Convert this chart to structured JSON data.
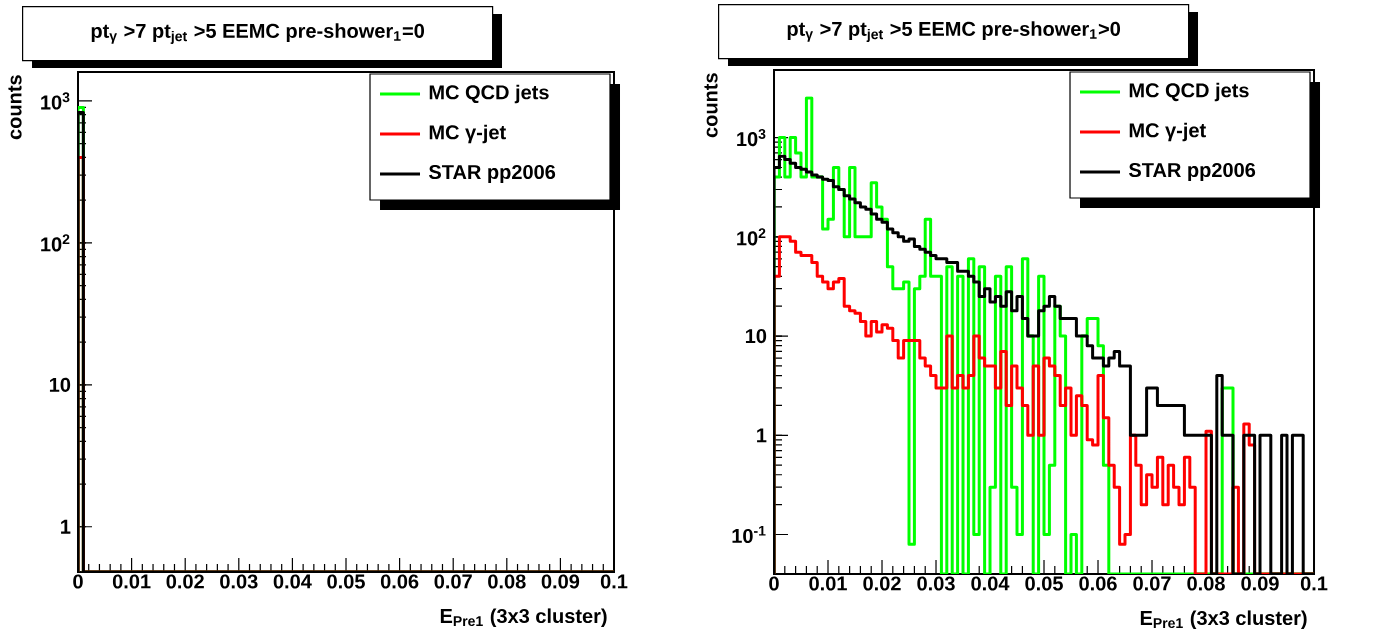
{
  "chart_data": [
    {
      "type": "histogram",
      "title": "pt$_{γ}$ >7  pt$_{jet}$ >5  EEMC pre-shower$_{1}$=0",
      "xlabel": "E$_{Pre1}$  (3x3 cluster)",
      "ylabel": "counts",
      "log": "y",
      "legend": "top right",
      "xlim": [
        0,
        0.1
      ],
      "ylim": [
        0.48,
        1600
      ],
      "xticks": [
        0,
        0.01,
        0.02,
        0.03,
        0.04,
        0.05,
        0.06,
        0.07,
        0.08,
        0.09,
        0.1
      ],
      "yticks": [
        1,
        10,
        {
          "value": 100,
          "label": "10$^{2}$"
        },
        {
          "value": 1000,
          "label": "10$^{3}$"
        }
      ],
      "bins": [
        0,
        0.001,
        0.002,
        0.003,
        0.004,
        0.005,
        0.006,
        0.007,
        0.008,
        0.009,
        0.01,
        0.011,
        0.012,
        0.013,
        0.014,
        0.015,
        0.016,
        0.017,
        0.018,
        0.019,
        0.02,
        0.021,
        0.022,
        0.023,
        0.024,
        0.025,
        0.026,
        0.027,
        0.028,
        0.029,
        0.03,
        0.031,
        0.032,
        0.033,
        0.034,
        0.035,
        0.036,
        0.037,
        0.038,
        0.039,
        0.04,
        0.041,
        0.042,
        0.043,
        0.044,
        0.045,
        0.046,
        0.047,
        0.048,
        0.049,
        0.05,
        0.051,
        0.052,
        0.053,
        0.054,
        0.055,
        0.056,
        0.057,
        0.058,
        0.059,
        0.06,
        0.061,
        0.062,
        0.063,
        0.064,
        0.065,
        0.066,
        0.067,
        0.068,
        0.069,
        0.07,
        0.071,
        0.072,
        0.073,
        0.074,
        0.075,
        0.076,
        0.077,
        0.078,
        0.079,
        0.08,
        0.081,
        0.082,
        0.083,
        0.084,
        0.085,
        0.086,
        0.087,
        0.088,
        0.089,
        0.09,
        0.091,
        0.092,
        0.093,
        0.094,
        0.095,
        0.096,
        0.097,
        0.098,
        0.099,
        0.1
      ],
      "series": [
        {
          "name": "MC QCD jets",
          "color": "#00ff00",
          "values": [
            900,
            null,
            null,
            null,
            null,
            null,
            null,
            null,
            null,
            null,
            null,
            null,
            null,
            null,
            null,
            null,
            null,
            null,
            null,
            null,
            null,
            null,
            null,
            null,
            null,
            null,
            null,
            null,
            null,
            null,
            null,
            null,
            null,
            null,
            null,
            null,
            null,
            null,
            null,
            null,
            null,
            null,
            null,
            null,
            null,
            null,
            null,
            null,
            null,
            null,
            null,
            null,
            null,
            null,
            null,
            null,
            null,
            null,
            null,
            null,
            null,
            null,
            null,
            null,
            null,
            null,
            null,
            null,
            null,
            null,
            null,
            null,
            null,
            null,
            null,
            null,
            null,
            null,
            null,
            null,
            null,
            null,
            null,
            null,
            null,
            null,
            null,
            null,
            null,
            null,
            null,
            null,
            null,
            null,
            null,
            null,
            null,
            null,
            null,
            null
          ]
        },
        {
          "name": "MC γ-jet",
          "color": "#ff0000",
          "values": [
            400,
            null,
            null,
            null,
            null,
            null,
            null,
            null,
            null,
            null,
            null,
            null,
            null,
            null,
            null,
            null,
            null,
            null,
            null,
            null,
            null,
            null,
            null,
            null,
            null,
            null,
            null,
            null,
            null,
            null,
            null,
            null,
            null,
            null,
            null,
            null,
            null,
            null,
            null,
            null,
            null,
            null,
            null,
            null,
            null,
            null,
            null,
            null,
            null,
            null,
            null,
            null,
            null,
            null,
            null,
            null,
            null,
            null,
            null,
            null,
            null,
            null,
            null,
            null,
            null,
            null,
            null,
            null,
            null,
            null,
            null,
            null,
            null,
            null,
            null,
            null,
            null,
            null,
            null,
            null,
            null,
            null,
            null,
            null,
            null,
            null,
            null,
            null,
            null,
            null,
            null,
            null,
            null,
            null,
            null,
            null,
            null,
            null,
            null,
            null
          ]
        },
        {
          "name": "STAR pp2006",
          "color": "#000000",
          "values": [
            830,
            null,
            null,
            null,
            null,
            null,
            null,
            null,
            null,
            null,
            null,
            null,
            null,
            null,
            null,
            null,
            null,
            null,
            null,
            null,
            null,
            null,
            null,
            null,
            null,
            null,
            null,
            null,
            null,
            null,
            null,
            null,
            null,
            null,
            null,
            null,
            null,
            null,
            null,
            null,
            null,
            null,
            null,
            null,
            null,
            null,
            null,
            null,
            null,
            null,
            null,
            null,
            null,
            null,
            null,
            null,
            null,
            null,
            null,
            null,
            null,
            null,
            null,
            null,
            null,
            null,
            null,
            null,
            null,
            null,
            null,
            null,
            null,
            null,
            null,
            null,
            null,
            null,
            null,
            null,
            null,
            null,
            null,
            null,
            null,
            null,
            null,
            null,
            null,
            null,
            null,
            null,
            null,
            null,
            null,
            null,
            null,
            null,
            null,
            null
          ]
        }
      ]
    },
    {
      "type": "histogram",
      "title": "pt$_{γ}$ >7  pt$_{jet}$ >5  EEMC pre-shower$_{1}$>0",
      "xlabel": "E$_{Pre1}$  (3x3 cluster)",
      "ylabel": "counts",
      "log": "y",
      "legend": "top right",
      "xlim": [
        0,
        0.1
      ],
      "ylim": [
        0.04,
        4800
      ],
      "xticks": [
        0,
        0.01,
        0.02,
        0.03,
        0.04,
        0.05,
        0.06,
        0.07,
        0.08,
        0.09,
        0.1
      ],
      "yticks": [
        {
          "value": 0.1,
          "label": "10$^{-1}$"
        },
        1,
        10,
        {
          "value": 100,
          "label": "10$^{2}$"
        },
        {
          "value": 1000,
          "label": "10$^{3}$"
        }
      ],
      "bins": [
        0,
        0.001,
        0.002,
        0.003,
        0.004,
        0.005,
        0.006,
        0.007,
        0.008,
        0.009,
        0.01,
        0.011,
        0.012,
        0.013,
        0.014,
        0.015,
        0.016,
        0.017,
        0.018,
        0.019,
        0.02,
        0.021,
        0.022,
        0.023,
        0.024,
        0.025,
        0.026,
        0.027,
        0.028,
        0.029,
        0.03,
        0.031,
        0.032,
        0.033,
        0.034,
        0.035,
        0.036,
        0.037,
        0.038,
        0.039,
        0.04,
        0.041,
        0.042,
        0.043,
        0.044,
        0.045,
        0.046,
        0.047,
        0.048,
        0.049,
        0.05,
        0.051,
        0.052,
        0.053,
        0.054,
        0.055,
        0.056,
        0.057,
        0.058,
        0.059,
        0.06,
        0.061,
        0.062,
        0.063,
        0.064,
        0.065,
        0.066,
        0.067,
        0.068,
        0.069,
        0.07,
        0.071,
        0.072,
        0.073,
        0.074,
        0.075,
        0.076,
        0.077,
        0.078,
        0.079,
        0.08,
        0.081,
        0.082,
        0.083,
        0.084,
        0.085,
        0.086,
        0.087,
        0.088,
        0.089,
        0.09,
        0.091,
        0.092,
        0.093,
        0.094,
        0.095,
        0.096,
        0.097,
        0.098,
        0.099,
        0.1
      ],
      "series": [
        {
          "name": "MC QCD jets",
          "color": "#00ff00",
          "values": [
            400,
            1000,
            400,
            1000,
            700,
            400,
            2500,
            400,
            400,
            120,
            150,
            500,
            300,
            100,
            500,
            100,
            100,
            100,
            350,
            200,
            150,
            50,
            30,
            30,
            35,
            0.08,
            30,
            40,
            150,
            40,
            40,
            null,
            50,
            null,
            40,
            null,
            60,
            0.1,
            50,
            null,
            0.3,
            40,
            null,
            50,
            0.3,
            0.1,
            60,
            10,
            null,
            40,
            0.1,
            0.5,
            20,
            10,
            null,
            0.1,
            null,
            10,
            15,
            15,
            8,
            0.5,
            null,
            null,
            null,
            null,
            null,
            null,
            null,
            null,
            null,
            null,
            null,
            null,
            null,
            null,
            null,
            null,
            null,
            null,
            null,
            null,
            null,
            3,
            3,
            null,
            null,
            null,
            null,
            null,
            null,
            null,
            null,
            null,
            null,
            null,
            null,
            null,
            null,
            null
          ]
        },
        {
          "name": "MC γ-jet",
          "color": "#ff0000",
          "values": [
            40,
            100,
            100,
            90,
            70,
            65,
            65,
            55,
            40,
            35,
            30,
            35,
            38,
            20,
            18,
            17,
            14,
            10,
            14,
            11,
            13,
            12,
            9,
            6,
            9,
            9,
            9,
            6,
            5,
            4,
            3,
            3,
            10,
            3,
            4,
            3,
            4,
            10,
            6,
            5,
            5,
            3,
            7,
            2,
            5,
            3,
            2,
            1,
            5,
            1,
            6,
            5,
            4,
            2,
            3,
            1,
            2.5,
            2,
            0.9,
            0.8,
            4,
            1.5,
            0.5,
            0.3,
            0.08,
            0.1,
            1,
            0.5,
            0.2,
            0.4,
            0.3,
            0.6,
            0.2,
            0.5,
            0.3,
            0.2,
            0.6,
            0.3,
            null,
            null,
            1.1,
            null,
            null,
            null,
            null,
            0.3,
            null,
            1.3,
            0.8,
            null,
            null,
            null,
            null,
            null,
            null,
            null,
            null,
            null,
            null,
            null
          ]
        },
        {
          "name": "STAR pp2006",
          "color": "#000000",
          "values": [
            500,
            650,
            600,
            550,
            500,
            480,
            450,
            420,
            400,
            380,
            370,
            320,
            300,
            260,
            240,
            220,
            200,
            190,
            170,
            150,
            140,
            120,
            110,
            100,
            90,
            95,
            80,
            75,
            70,
            65,
            60,
            60,
            55,
            55,
            45,
            45,
            40,
            35,
            25,
            30,
            22,
            25,
            20,
            28,
            18,
            25,
            15,
            10,
            10,
            18,
            20,
            25,
            20,
            15,
            15,
            15,
            10,
            10,
            8,
            6,
            6,
            5,
            6,
            7,
            5,
            5,
            1,
            1,
            1,
            3,
            3,
            2,
            2,
            2,
            2,
            2,
            1,
            1,
            1,
            1,
            1,
            null,
            4,
            1,
            1,
            null,
            null,
            1,
            1,
            null,
            1,
            1,
            null,
            null,
            1,
            null,
            1,
            1,
            null,
            null
          ]
        }
      ]
    }
  ]
}
